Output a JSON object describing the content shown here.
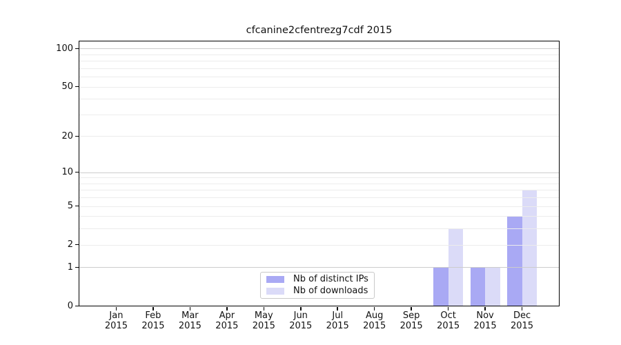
{
  "chart_data": {
    "type": "bar",
    "title": "cfcanine2cfentrezg7cdf 2015",
    "categories": [
      {
        "month": "Jan",
        "year": "2015"
      },
      {
        "month": "Feb",
        "year": "2015"
      },
      {
        "month": "Mar",
        "year": "2015"
      },
      {
        "month": "Apr",
        "year": "2015"
      },
      {
        "month": "May",
        "year": "2015"
      },
      {
        "month": "Jun",
        "year": "2015"
      },
      {
        "month": "Jul",
        "year": "2015"
      },
      {
        "month": "Aug",
        "year": "2015"
      },
      {
        "month": "Sep",
        "year": "2015"
      },
      {
        "month": "Oct",
        "year": "2015"
      },
      {
        "month": "Nov",
        "year": "2015"
      },
      {
        "month": "Dec",
        "year": "2015"
      }
    ],
    "series": [
      {
        "name": "Nb of distinct IPs",
        "color": "#a9a9f4",
        "values": [
          0,
          0,
          0,
          0,
          0,
          0,
          0,
          0,
          0,
          1,
          1,
          4
        ]
      },
      {
        "name": "Nb of downloads",
        "color": "#dbdbf8",
        "values": [
          0,
          0,
          0,
          0,
          0,
          0,
          0,
          0,
          0,
          3,
          1,
          7
        ]
      }
    ],
    "y_ticks": [
      0,
      1,
      2,
      5,
      10,
      20,
      50,
      100
    ],
    "y_scale": "log1p",
    "ylim": [
      0,
      114
    ],
    "xlabel": "",
    "ylabel": "",
    "grid": "horizontal",
    "legend_position": "lower center",
    "colors": {
      "major_grid": "#cccccc",
      "minor_grid": "#ececec",
      "frame": "#000000",
      "background": "#ffffff"
    }
  }
}
